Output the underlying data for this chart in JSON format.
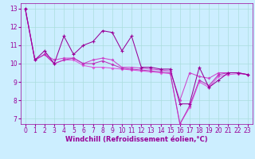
{
  "xlabel": "Windchill (Refroidissement éolien,°C)",
  "background_color": "#cceeff",
  "line_color": "#990099",
  "xlim": [
    -0.5,
    23.5
  ],
  "ylim": [
    6.7,
    13.3
  ],
  "yticks": [
    7,
    8,
    9,
    10,
    11,
    12,
    13
  ],
  "xticks": [
    0,
    1,
    2,
    3,
    4,
    5,
    6,
    7,
    8,
    9,
    10,
    11,
    12,
    13,
    14,
    15,
    16,
    17,
    18,
    19,
    20,
    21,
    22,
    23
  ],
  "series1": [
    13.0,
    10.2,
    10.7,
    10.0,
    11.5,
    10.5,
    11.0,
    11.2,
    11.8,
    11.7,
    10.7,
    11.5,
    9.8,
    9.8,
    9.7,
    9.7,
    7.8,
    7.8,
    9.8,
    8.7,
    9.1,
    9.5,
    9.5,
    9.4
  ],
  "series2": [
    13.0,
    10.2,
    10.5,
    10.2,
    10.3,
    10.3,
    10.0,
    10.2,
    10.3,
    10.2,
    9.8,
    9.8,
    9.75,
    9.7,
    9.65,
    9.6,
    8.0,
    9.5,
    9.3,
    9.2,
    9.5,
    9.5,
    9.5,
    9.4
  ],
  "series3": [
    13.0,
    10.2,
    10.5,
    10.0,
    10.2,
    10.3,
    10.0,
    10.0,
    10.15,
    9.95,
    9.75,
    9.7,
    9.65,
    9.6,
    9.55,
    9.5,
    6.7,
    7.7,
    9.1,
    8.8,
    9.4,
    9.5,
    9.5,
    9.4
  ],
  "series4": [
    13.0,
    10.2,
    10.5,
    10.0,
    10.2,
    10.2,
    9.9,
    9.8,
    9.8,
    9.75,
    9.7,
    9.65,
    9.6,
    9.55,
    9.5,
    9.45,
    6.7,
    7.6,
    9.0,
    8.7,
    9.3,
    9.4,
    9.45,
    9.4
  ],
  "grid_color": "#aadddd",
  "tick_fontsize": 5.5,
  "xlabel_fontsize": 6.0,
  "markersize": 2.5,
  "linewidth": 0.75
}
